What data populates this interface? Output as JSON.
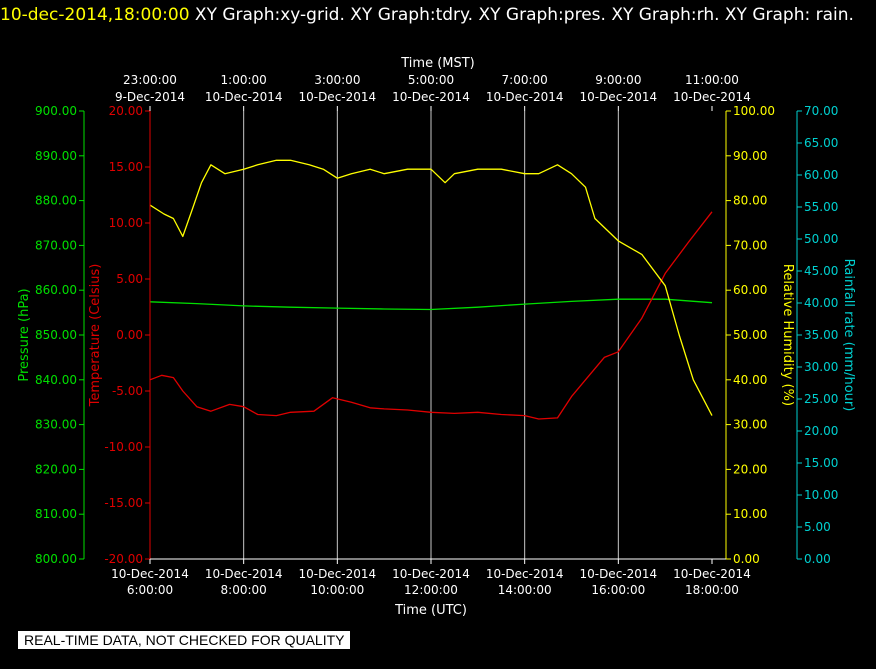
{
  "header": {
    "timestamp": "10-dec-2014,18:00:00",
    "graphs": " XY Graph:xy-grid.  XY Graph:tdry.  XY Graph:pres.  XY Graph:rh.  XY Graph: rain."
  },
  "footer": {
    "notice": "REAL-TIME DATA, NOT CHECKED FOR QUALITY"
  },
  "colors": {
    "pressure": "#00e000",
    "temperature": "#e00000",
    "humidity": "#ffff00",
    "rainfall": "#00d0d0",
    "grid": "#c8c8c8",
    "axis": "#ffffff"
  },
  "chart_data": {
    "type": "line",
    "x_top_title": "Time (MST)",
    "x_bottom_title": "Time (UTC)",
    "x_hours": [
      6,
      8,
      10,
      12,
      14,
      16,
      18
    ],
    "x_bottom_ticks": [
      {
        "date": "10-Dec-2014",
        "time": "6:00:00"
      },
      {
        "date": "10-Dec-2014",
        "time": "8:00:00"
      },
      {
        "date": "10-Dec-2014",
        "time": "10:00:00"
      },
      {
        "date": "10-Dec-2014",
        "time": "12:00:00"
      },
      {
        "date": "10-Dec-2014",
        "time": "14:00:00"
      },
      {
        "date": "10-Dec-2014",
        "time": "16:00:00"
      },
      {
        "date": "10-Dec-2014",
        "time": "18:00:00"
      }
    ],
    "x_top_ticks": [
      {
        "time": "23:00:00",
        "date": "9-Dec-2014"
      },
      {
        "time": "1:00:00",
        "date": "10-Dec-2014"
      },
      {
        "time": "3:00:00",
        "date": "10-Dec-2014"
      },
      {
        "time": "5:00:00",
        "date": "10-Dec-2014"
      },
      {
        "time": "7:00:00",
        "date": "10-Dec-2014"
      },
      {
        "time": "9:00:00",
        "date": "10-Dec-2014"
      },
      {
        "time": "11:00:00",
        "date": "10-Dec-2014"
      }
    ],
    "xlim": [
      6,
      18
    ],
    "axes": {
      "pressure": {
        "label": "Pressure (hPa)",
        "ylim": [
          800,
          900
        ],
        "ticks": [
          "800.00",
          "810.00",
          "820.00",
          "830.00",
          "840.00",
          "850.00",
          "860.00",
          "870.00",
          "880.00",
          "890.00",
          "900.00"
        ]
      },
      "temperature": {
        "label": "Temperature (Celsius)",
        "ylim": [
          -20,
          20
        ],
        "ticks": [
          "-20.00",
          "-15.00",
          "-10.00",
          "-5.00",
          "0.00",
          "5.00",
          "10.00",
          "15.00",
          "20.00"
        ]
      },
      "humidity": {
        "label": "Relative Humidity (%)",
        "ylim": [
          0,
          100
        ],
        "ticks": [
          "0.00",
          "10.00",
          "20.00",
          "30.00",
          "40.00",
          "50.00",
          "60.00",
          "70.00",
          "80.00",
          "90.00",
          "100.00"
        ]
      },
      "rainfall": {
        "label": "Rainfall rate (mm/hour)",
        "ylim": [
          0,
          70
        ],
        "ticks": [
          "0.00",
          "5.00",
          "10.00",
          "15.00",
          "20.00",
          "25.00",
          "30.00",
          "35.00",
          "40.00",
          "45.00",
          "50.00",
          "55.00",
          "60.00",
          "65.00",
          "70.00"
        ]
      }
    },
    "series": [
      {
        "name": "Pressure",
        "axis": "pressure",
        "x": [
          6,
          7,
          8,
          9,
          10,
          11,
          12,
          13,
          14,
          15,
          16,
          17,
          18
        ],
        "y": [
          857.4,
          857.0,
          856.5,
          856.2,
          856.0,
          855.8,
          855.7,
          856.2,
          856.9,
          857.5,
          858.0,
          858.0,
          857.2
        ]
      },
      {
        "name": "Temperature",
        "axis": "temperature",
        "x": [
          6,
          6.25,
          6.5,
          6.7,
          7,
          7.3,
          7.7,
          8,
          8.3,
          8.7,
          9,
          9.5,
          9.9,
          10.3,
          10.7,
          11,
          11.5,
          12,
          12.5,
          13,
          13.5,
          14,
          14.3,
          14.7,
          15,
          15.3,
          15.7,
          16,
          16.5,
          17,
          17.5,
          18
        ],
        "y": [
          -4.0,
          -3.6,
          -3.8,
          -5.0,
          -6.4,
          -6.8,
          -6.2,
          -6.4,
          -7.1,
          -7.2,
          -6.9,
          -6.8,
          -5.6,
          -6.0,
          -6.5,
          -6.6,
          -6.7,
          -6.9,
          -7.0,
          -6.9,
          -7.1,
          -7.2,
          -7.5,
          -7.4,
          -5.5,
          -4.0,
          -2.0,
          -1.5,
          1.5,
          5.5,
          8.3,
          11.0
        ]
      },
      {
        "name": "Relative Humidity",
        "axis": "humidity",
        "x": [
          6,
          6.3,
          6.5,
          6.7,
          6.9,
          7.1,
          7.3,
          7.6,
          8,
          8.3,
          8.7,
          9,
          9.4,
          9.7,
          10,
          10.3,
          10.7,
          11,
          11.5,
          12,
          12.3,
          12.5,
          13,
          13.5,
          14,
          14.3,
          14.7,
          15,
          15.3,
          15.5,
          16,
          16.5,
          17,
          17.3,
          17.6,
          18
        ],
        "y": [
          79,
          77,
          76,
          72,
          78,
          84,
          88,
          86,
          87,
          88,
          89,
          89,
          88,
          87,
          85,
          86,
          87,
          86,
          87,
          87,
          84,
          86,
          87,
          87,
          86,
          86,
          88,
          86,
          83,
          76,
          71,
          68,
          61,
          50,
          40,
          32
        ]
      },
      {
        "name": "Rainfall rate",
        "axis": "rainfall",
        "x": [],
        "y": []
      }
    ]
  }
}
